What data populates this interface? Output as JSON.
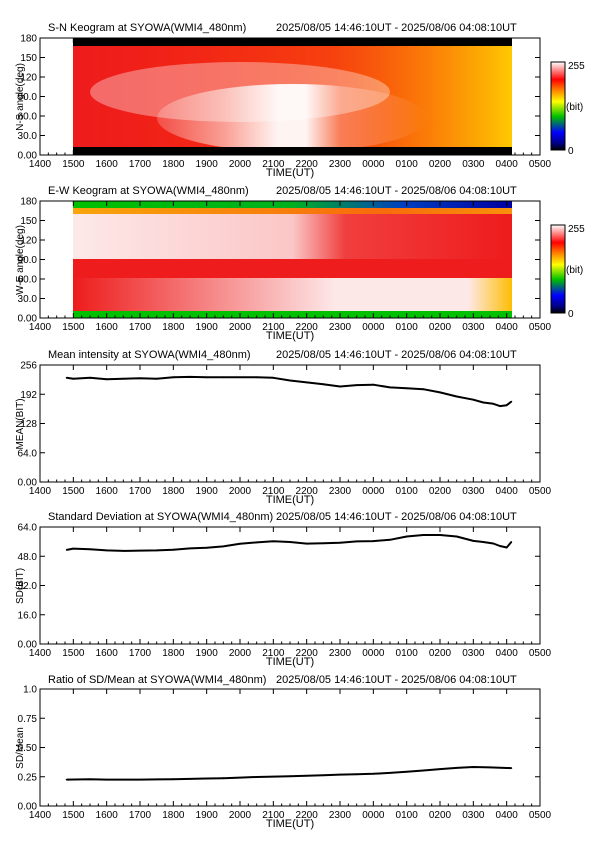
{
  "time_axis": {
    "label": "TIME(UT)",
    "ticks": [
      "1400",
      "1500",
      "1600",
      "1700",
      "1800",
      "1900",
      "2000",
      "2100",
      "2200",
      "2300",
      "0000",
      "0100",
      "0200",
      "0300",
      "0400",
      "0500"
    ],
    "range_hours": [
      14,
      29
    ],
    "data_start_hours": 14.77,
    "data_end_hours": 28.14
  },
  "keogram_sn": {
    "title": "S-N Keogram at SYOWA(WMI4_480nm)",
    "time_range": "2025/08/05 14:46:10UT - 2025/08/06 04:08:10UT",
    "ylabel": "N-S angle(deg)",
    "yticks": [
      "0.00",
      "30.0",
      "60.0",
      "90.0",
      "120",
      "150",
      "180"
    ],
    "colorbar": {
      "max_label": "255",
      "unit_label": "(bit)",
      "min_label": "0"
    }
  },
  "keogram_ew": {
    "title": "E-W Keogram at SYOWA(WMI4_480nm)",
    "time_range": "2025/08/05 14:46:10UT - 2025/08/06 04:08:10UT",
    "ylabel": "W-E angle(deg)",
    "yticks": [
      "0.00",
      "30.0",
      "60.0",
      "90.0",
      "120",
      "150",
      "180"
    ],
    "colorbar": {
      "max_label": "255",
      "unit_label": "(bit)",
      "min_label": "0"
    }
  },
  "colors": {
    "colorbar_stops": [
      "#000000",
      "#00008b",
      "#0000ff",
      "#00c000",
      "#ffff00",
      "#ff8000",
      "#ff0000",
      "#ff8080",
      "#ffffff"
    ],
    "keogram_red": "#ee1c1c",
    "keogram_white": "#ffffff",
    "line": "#000000"
  },
  "chart_data": [
    {
      "type": "line",
      "title": "Mean intensity at SYOWA(WMI4_480nm)",
      "time_range": "2025/08/05 14:46:10UT - 2025/08/06 04:08:10UT",
      "xlabel": "TIME(UT)",
      "ylabel": "MEAN(BIT)",
      "ylim": [
        0,
        256
      ],
      "yticks": [
        "0.00",
        "64.0",
        "128",
        "192",
        "256"
      ],
      "series": [
        {
          "x": [
            14.8,
            15.0,
            15.5,
            16.0,
            16.5,
            17.0,
            17.5,
            18.0,
            18.5,
            19.0,
            19.5,
            20.0,
            20.5,
            21.0,
            21.5,
            22.0,
            22.5,
            23.0,
            23.5,
            24.0,
            24.5,
            25.0,
            25.5,
            26.0,
            26.5,
            27.0,
            27.3,
            27.6,
            27.8,
            28.0,
            28.14
          ],
          "y": [
            228,
            226,
            228,
            225,
            226,
            227,
            226,
            229,
            230,
            229,
            229,
            229,
            229,
            228,
            222,
            218,
            214,
            209,
            212,
            213,
            207,
            205,
            203,
            196,
            187,
            180,
            174,
            171,
            166,
            168,
            176
          ]
        }
      ]
    },
    {
      "type": "line",
      "title": "Standard Deviation at SYOWA(WMI4_480nm)",
      "time_range": "2025/08/05 14:46:10UT - 2025/08/06 04:08:10UT",
      "xlabel": "TIME(UT)",
      "ylabel": "SD(BIT)",
      "ylim": [
        0,
        64
      ],
      "yticks": [
        "0.00",
        "16.0",
        "32.0",
        "48.0",
        "64.0"
      ],
      "series": [
        {
          "x": [
            14.8,
            15.0,
            15.5,
            16.0,
            16.5,
            17.0,
            17.5,
            18.0,
            18.5,
            19.0,
            19.5,
            20.0,
            20.5,
            21.0,
            21.5,
            22.0,
            22.5,
            23.0,
            23.5,
            24.0,
            24.5,
            25.0,
            25.5,
            26.0,
            26.5,
            27.0,
            27.3,
            27.6,
            27.8,
            28.0,
            28.14
          ],
          "y": [
            51.5,
            52.2,
            51.8,
            51.2,
            50.9,
            51.1,
            51.2,
            51.6,
            52.3,
            52.6,
            53.4,
            54.8,
            55.6,
            56.2,
            55.8,
            54.9,
            55.1,
            55.4,
            56.1,
            56.3,
            57.0,
            58.8,
            59.6,
            59.6,
            58.8,
            56.4,
            55.8,
            55.0,
            53.6,
            52.8,
            55.8
          ]
        }
      ]
    },
    {
      "type": "line",
      "title": "Ratio of SD/Mean at SYOWA(WMI4_480nm)",
      "time_range": "2025/08/05 14:46:10UT - 2025/08/06 04:08:10UT",
      "xlabel": "TIME(UT)",
      "ylabel": "SD/Mean",
      "ylim": [
        0,
        1.0
      ],
      "yticks": [
        "0.00",
        "0.25",
        "0.50",
        "0.75",
        "1.0"
      ],
      "series": [
        {
          "x": [
            14.8,
            15.5,
            16.0,
            16.5,
            17.0,
            17.5,
            18.0,
            18.5,
            19.0,
            19.5,
            20.0,
            20.5,
            21.0,
            21.5,
            22.0,
            22.5,
            23.0,
            23.5,
            24.0,
            24.5,
            25.0,
            25.5,
            26.0,
            26.5,
            27.0,
            27.5,
            28.0,
            28.14
          ],
          "y": [
            0.226,
            0.228,
            0.226,
            0.226,
            0.226,
            0.227,
            0.229,
            0.232,
            0.235,
            0.238,
            0.243,
            0.248,
            0.251,
            0.255,
            0.258,
            0.262,
            0.268,
            0.271,
            0.275,
            0.283,
            0.292,
            0.303,
            0.315,
            0.326,
            0.333,
            0.33,
            0.325,
            0.324
          ]
        }
      ]
    }
  ]
}
